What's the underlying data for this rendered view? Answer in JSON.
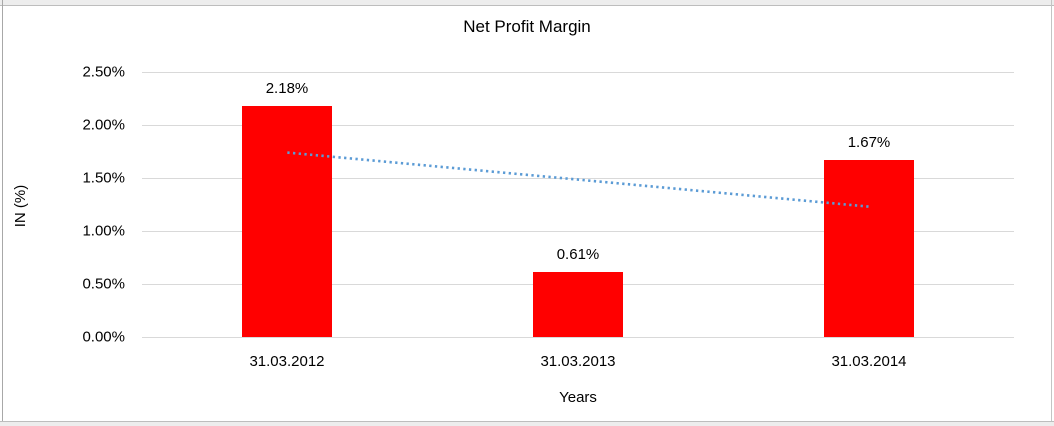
{
  "chart_data": {
    "type": "bar",
    "title": "Net Profit Margin",
    "xlabel": "Years",
    "ylabel": "IN (%)",
    "categories": [
      "31.03.2012",
      "31.03.2013",
      "31.03.2014"
    ],
    "values": [
      2.18,
      0.61,
      1.67
    ],
    "data_labels": [
      "2.18%",
      "0.61%",
      "1.67%"
    ],
    "ylim": [
      0,
      2.5
    ],
    "ytick_values": [
      0,
      0.5,
      1.0,
      1.5,
      2.0,
      2.5
    ],
    "ytick_labels": [
      "0.00%",
      "0.50%",
      "1.00%",
      "1.50%",
      "2.00%",
      "2.50%"
    ],
    "grid": true,
    "legend": "none",
    "bar_color": "#FF0000",
    "gridline_color": "#D9D9D9",
    "trendline": {
      "type": "linear",
      "style": "dotted",
      "color": "#5B9BD5",
      "start_value": 1.74,
      "end_value": 1.23
    }
  }
}
